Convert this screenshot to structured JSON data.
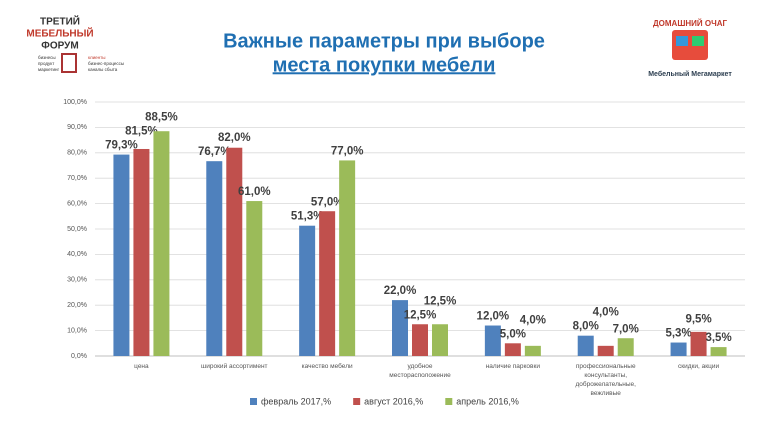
{
  "logos": {
    "left": {
      "line1": "ТРЕТИЙ",
      "line2": "МЕБЕЛЬНЫЙ",
      "line3": "ФОРУМ",
      "left_items": [
        "бизнесы",
        "продукт",
        "маркетинг"
      ],
      "right_items": [
        "клиенты",
        "бизнес-процессы",
        "каналы сбыта"
      ]
    },
    "right": {
      "name": "ДОМАШНИЙ ОЧАГ",
      "tagline": "Мебельный Мегамаркет"
    }
  },
  "chart_data": {
    "type": "bar",
    "title": "Важные параметры при выборе",
    "subtitle": "места покупки мебели",
    "categories": [
      "цена",
      "широкий ассортимент",
      "качество мебели",
      "удобное месторасположение",
      "наличие парковки",
      "профессиональные консультанты, доброжелательные, вежливые",
      "скидки, акции"
    ],
    "series": [
      {
        "name": "февраль 2017,%",
        "color": "#4f81bd",
        "values": [
          79.3,
          76.7,
          51.3,
          22.0,
          12.0,
          8.0,
          5.3
        ],
        "value_labels": [
          "79,3%",
          "76,7%",
          "51,3%",
          "22,0%",
          "12,0%",
          "8,0%",
          "5,3%"
        ]
      },
      {
        "name": "август 2016,%",
        "color": "#c0504d",
        "values": [
          81.5,
          82.0,
          57.0,
          12.5,
          5.0,
          4.0,
          9.5
        ],
        "value_labels": [
          "81,5%",
          "82,0%",
          "57,0%",
          "12,5%",
          "5,0%",
          "4,0%",
          "9,5%"
        ]
      },
      {
        "name": "апрель 2016,%",
        "color": "#9bbb59",
        "values": [
          88.5,
          61.0,
          77.0,
          12.5,
          4.0,
          7.0,
          3.5
        ],
        "value_labels": [
          "88,5%",
          "61,0%",
          "77,0%",
          "12,5%",
          "4,0%",
          "7,0%",
          "3,5%"
        ]
      }
    ],
    "ylim": [
      0,
      100
    ],
    "yticks": [
      {
        "value": 0,
        "label": "0,0%"
      },
      {
        "value": 10,
        "label": "10,0%"
      },
      {
        "value": 20,
        "label": "20,0%"
      },
      {
        "value": 30,
        "label": "30,0%"
      },
      {
        "value": 40,
        "label": "40,0%"
      },
      {
        "value": 50,
        "label": "50,0%"
      },
      {
        "value": 60,
        "label": "60,0%"
      },
      {
        "value": 70,
        "label": "70,0%"
      },
      {
        "value": 80,
        "label": "80,0%"
      },
      {
        "value": 90,
        "label": "90,0%"
      },
      {
        "value": 100,
        "label": "100,0%"
      }
    ],
    "grid": true,
    "legend": "bottom"
  }
}
